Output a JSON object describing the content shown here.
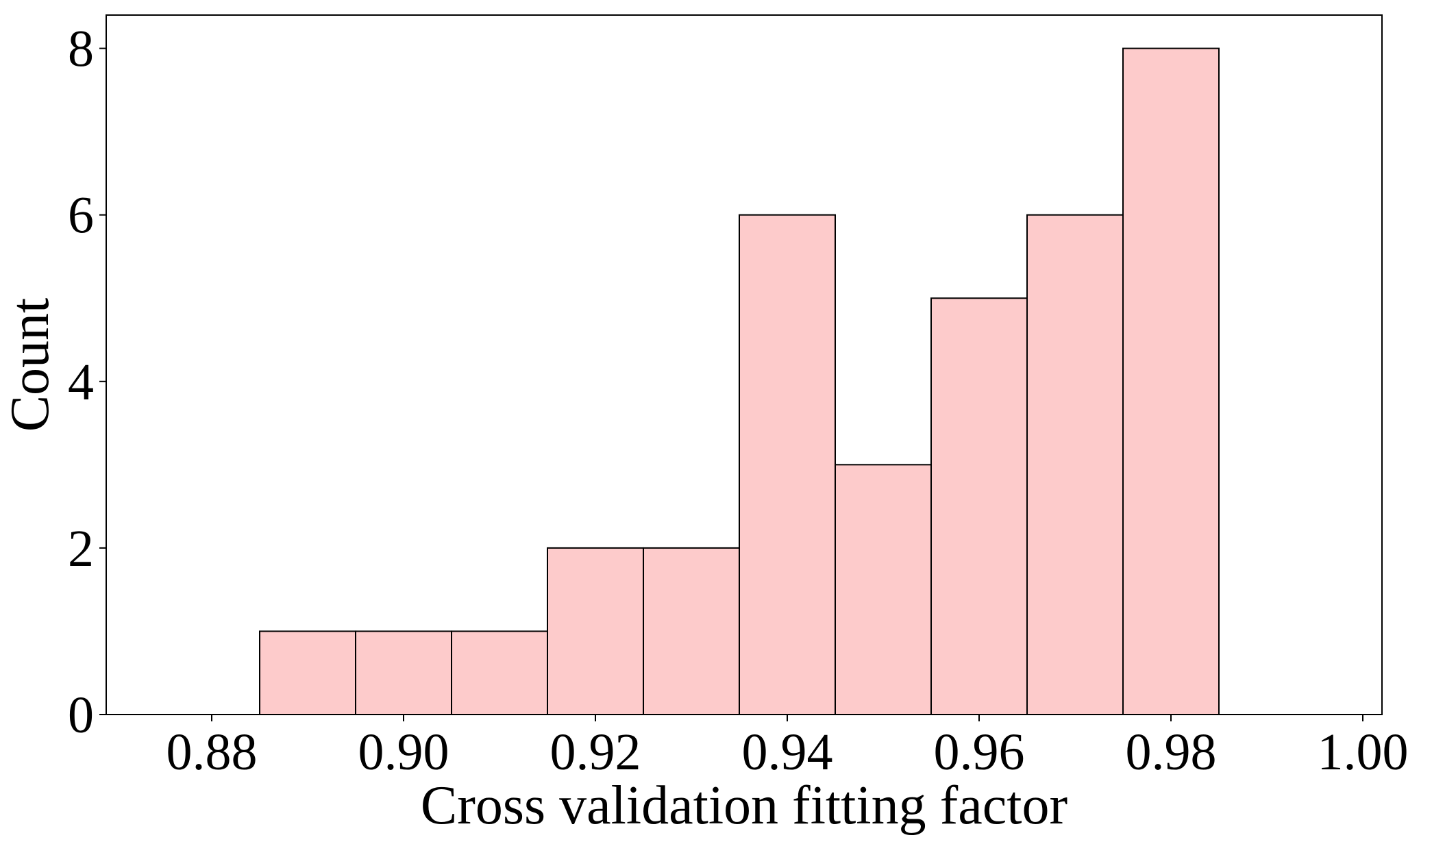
{
  "chart_data": {
    "type": "bar",
    "subtype": "histogram",
    "title": "",
    "xlabel": "Cross validation fitting factor",
    "ylabel": "Count",
    "bin_edges": [
      0.875,
      0.885,
      0.895,
      0.905,
      0.915,
      0.925,
      0.935,
      0.945,
      0.955,
      0.965,
      0.975,
      0.985,
      0.995
    ],
    "values": [
      0,
      1,
      1,
      1,
      2,
      2,
      6,
      3,
      5,
      6,
      8,
      0
    ],
    "xlim": [
      0.869,
      1.002
    ],
    "ylim": [
      0,
      8.4
    ],
    "xticks": [
      0.88,
      0.9,
      0.92,
      0.94,
      0.96,
      0.98,
      1.0
    ],
    "xtick_labels": [
      "0.88",
      "0.90",
      "0.92",
      "0.94",
      "0.96",
      "0.98",
      "1.00"
    ],
    "yticks": [
      0,
      2,
      4,
      6,
      8
    ],
    "ytick_labels": [
      "0",
      "2",
      "4",
      "6",
      "8"
    ],
    "grid": false,
    "legend": "none",
    "bar_color": "#fdcbcb",
    "edge_color": "#000000"
  }
}
